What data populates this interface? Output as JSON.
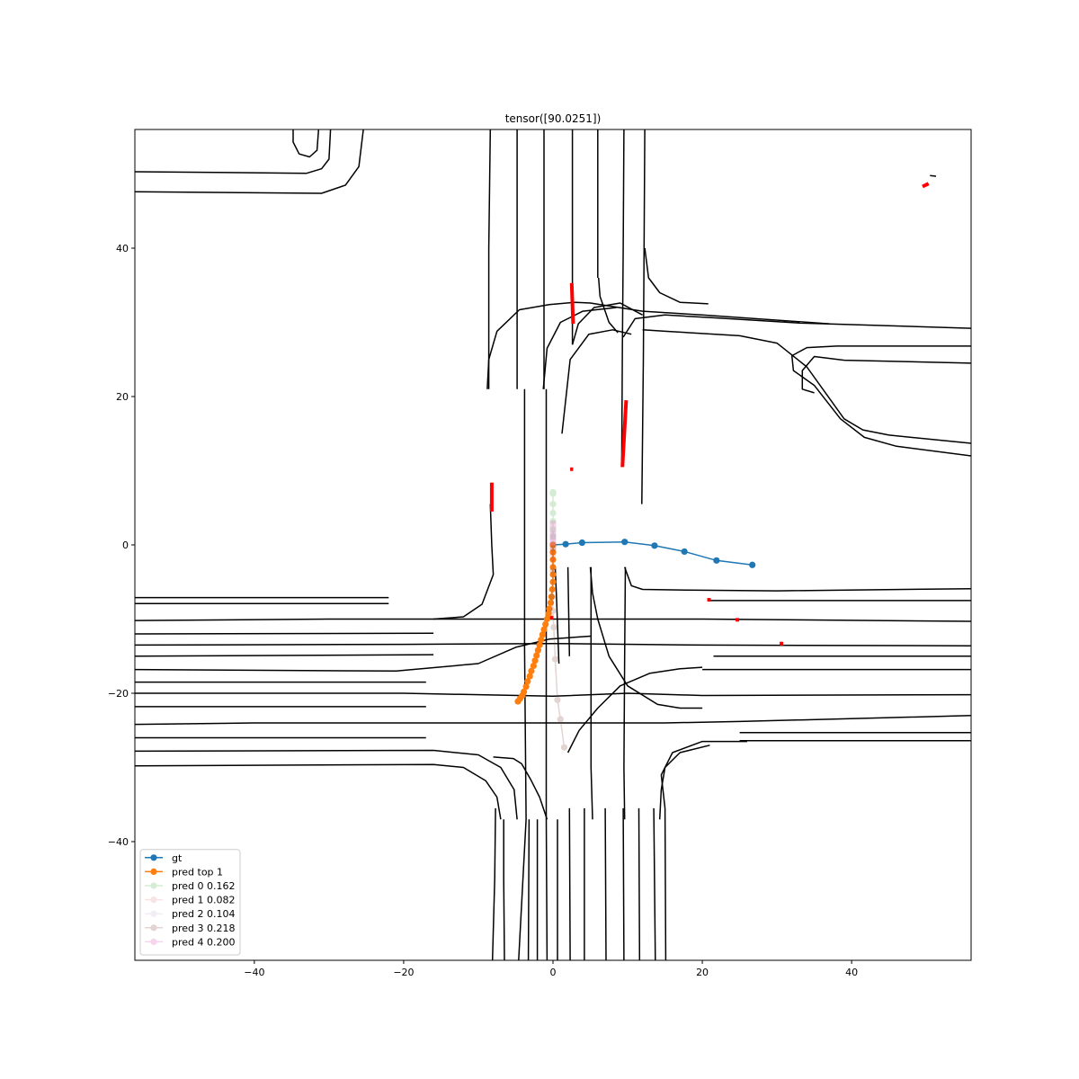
{
  "chart_data": {
    "type": "line",
    "title": "tensor([90.0251])",
    "xlabel": "",
    "ylabel": "",
    "xlim": [
      -56,
      56
    ],
    "ylim": [
      -56,
      56
    ],
    "xticks": [
      -40,
      -20,
      0,
      20,
      40
    ],
    "yticks": [
      -40,
      -20,
      0,
      20,
      40
    ],
    "xtick_labels": [
      "−40",
      "−20",
      "0",
      "20",
      "40"
    ],
    "ytick_labels": [
      "−40",
      "−20",
      "0",
      "20",
      "40"
    ],
    "grid": false,
    "legend_position": "lower-left",
    "lane_color": "#000000",
    "lanes": [
      [
        [
          -56,
          50.3
        ],
        [
          -33,
          50.1
        ],
        [
          -31,
          50.7
        ],
        [
          -30,
          52
        ],
        [
          -29.8,
          56
        ]
      ],
      [
        [
          -56,
          47.6
        ],
        [
          -31,
          47.4
        ],
        [
          -27.8,
          48.5
        ],
        [
          -26,
          51
        ],
        [
          -25.4,
          56
        ]
      ],
      [
        [
          -34.8,
          56
        ],
        [
          -34.8,
          54.3
        ],
        [
          -34,
          52.7
        ],
        [
          -32.6,
          52.3
        ],
        [
          -31.6,
          53.2
        ],
        [
          -31.4,
          56
        ]
      ],
      [
        [
          -8.4,
          56
        ],
        [
          -8.6,
          40
        ],
        [
          -8.6,
          21
        ]
      ],
      [
        [
          -4.8,
          56
        ],
        [
          -4.8,
          40
        ],
        [
          -4.8,
          21
        ]
      ],
      [
        [
          -8.4,
          5.5
        ],
        [
          -8.2,
          0
        ],
        [
          -8,
          -4
        ],
        [
          -9.5,
          -8
        ],
        [
          -12,
          -9.7
        ],
        [
          -16,
          -10
        ]
      ],
      [
        [
          -8.8,
          21
        ],
        [
          -8.6,
          25
        ],
        [
          -7.5,
          28.8
        ],
        [
          -4.5,
          31.7
        ],
        [
          -0.5,
          32.4
        ],
        [
          3,
          32.7
        ],
        [
          5,
          32.6
        ],
        [
          12,
          31.5
        ],
        [
          20,
          31
        ],
        [
          37,
          29.8
        ]
      ],
      [
        [
          -1.2,
          56
        ],
        [
          -1.2,
          40
        ],
        [
          -1.2,
          21
        ]
      ],
      [
        [
          -1.3,
          21
        ],
        [
          -0.8,
          26.5
        ],
        [
          1,
          30
        ],
        [
          4,
          31.5
        ],
        [
          8.5,
          32
        ]
      ],
      [
        [
          2.6,
          56
        ],
        [
          2.6,
          40
        ],
        [
          2.6,
          27
        ]
      ],
      [
        [
          2.6,
          27
        ],
        [
          3.4,
          29.8
        ],
        [
          5.5,
          32
        ],
        [
          9,
          32.6
        ],
        [
          12,
          31
        ]
      ],
      [
        [
          9.5,
          56
        ],
        [
          9.4,
          40
        ],
        [
          9.3,
          27
        ],
        [
          9.2,
          10.5
        ]
      ],
      [
        [
          9.4,
          28
        ],
        [
          11,
          30.5
        ],
        [
          15,
          31
        ],
        [
          22,
          30.6
        ],
        [
          33,
          29.9
        ],
        [
          56,
          29.2
        ]
      ],
      [
        [
          6,
          56
        ],
        [
          6,
          42
        ],
        [
          6,
          36
        ]
      ],
      [
        [
          6.1,
          36
        ],
        [
          6.3,
          33.5
        ],
        [
          7.5,
          30
        ],
        [
          8.7,
          28.6
        ]
      ],
      [
        [
          12.3,
          56
        ],
        [
          12.2,
          40
        ],
        [
          12.1,
          25
        ],
        [
          11.9,
          5.5
        ]
      ],
      [
        [
          12.3,
          40
        ],
        [
          12.8,
          36
        ],
        [
          14.3,
          34
        ],
        [
          17,
          32.7
        ],
        [
          20.8,
          32.5
        ]
      ],
      [
        [
          1.2,
          15
        ],
        [
          2.3,
          25
        ],
        [
          4.8,
          28.4
        ],
        [
          8,
          29
        ],
        [
          10.5,
          28.4
        ]
      ],
      [
        [
          12,
          29
        ],
        [
          15,
          28.8
        ],
        [
          25,
          28.2
        ],
        [
          30,
          27.2
        ],
        [
          34,
          24
        ],
        [
          39,
          17
        ],
        [
          41.5,
          15.5
        ],
        [
          45,
          14.8
        ],
        [
          56,
          13.7
        ]
      ],
      [
        [
          -3.8,
          21
        ],
        [
          -3.8,
          5
        ],
        [
          -3.8,
          -14
        ],
        [
          -3.6,
          -37
        ],
        [
          -4.6,
          -56
        ]
      ],
      [
        [
          -0.9,
          21
        ],
        [
          -0.9,
          5
        ],
        [
          -0.9,
          -14
        ],
        [
          -0.9,
          -37
        ],
        [
          -0.8,
          -56
        ]
      ],
      [
        [
          -0.8,
          -37
        ],
        [
          -1.8,
          -34
        ],
        [
          -3,
          -31.6
        ],
        [
          -4.2,
          -29.5
        ],
        [
          -5.3,
          -28.8
        ],
        [
          -8,
          -28.6
        ]
      ],
      [
        [
          0.3,
          -3
        ],
        [
          0.5,
          -8
        ],
        [
          0.8,
          -16
        ]
      ],
      [
        [
          2,
          -3
        ],
        [
          2.2,
          -15
        ]
      ],
      [
        [
          5.1,
          -3
        ],
        [
          5.1,
          -15
        ],
        [
          5.1,
          -30
        ],
        [
          5.3,
          -37
        ]
      ],
      [
        [
          5,
          -3
        ],
        [
          5.3,
          -6.5
        ],
        [
          6,
          -10
        ],
        [
          7.5,
          -15
        ],
        [
          10,
          -19
        ],
        [
          14,
          -21.5
        ],
        [
          17,
          -22
        ],
        [
          20,
          -22
        ]
      ],
      [
        [
          9.7,
          -3
        ],
        [
          9.6,
          -15
        ],
        [
          9.5,
          -30
        ],
        [
          9.6,
          -37
        ]
      ],
      [
        [
          9.6,
          -3
        ],
        [
          10.5,
          -5.5
        ],
        [
          12,
          -6
        ],
        [
          18,
          -6.1
        ],
        [
          30,
          -6.2
        ],
        [
          56,
          -5.9
        ]
      ],
      [
        [
          20.8,
          -7.5
        ],
        [
          56,
          -7.5
        ]
      ],
      [
        [
          -56,
          -10.2
        ],
        [
          -30,
          -10
        ],
        [
          0,
          -10
        ],
        [
          20,
          -10
        ],
        [
          56,
          -10.3
        ]
      ],
      [
        [
          -56,
          -12
        ],
        [
          -16,
          -11.9
        ]
      ],
      [
        [
          -56,
          -13.5
        ],
        [
          -20,
          -13.4
        ],
        [
          0,
          -13.3
        ],
        [
          20,
          -13.5
        ],
        [
          56,
          -13.6
        ]
      ],
      [
        [
          -56,
          -15
        ],
        [
          -16,
          -14.8
        ]
      ],
      [
        [
          -56,
          -16.8
        ],
        [
          -21,
          -17
        ],
        [
          -10,
          -16
        ],
        [
          -5,
          -13.8
        ],
        [
          -0.5,
          -12.7
        ],
        [
          5,
          -12.3
        ]
      ],
      [
        [
          21.5,
          -15
        ],
        [
          56,
          -15
        ]
      ],
      [
        [
          -56,
          -18.5
        ],
        [
          -17,
          -18.5
        ]
      ],
      [
        [
          -56,
          -20
        ],
        [
          -20,
          -20
        ],
        [
          0,
          -20.4
        ],
        [
          10,
          -20
        ],
        [
          20,
          -20.3
        ],
        [
          56,
          -20.2
        ]
      ],
      [
        [
          -56,
          -21.8
        ],
        [
          -17,
          -21.8
        ]
      ],
      [
        [
          -56,
          -24.2
        ],
        [
          -40,
          -24
        ],
        [
          -15,
          -24
        ],
        [
          0,
          -24
        ],
        [
          15,
          -24
        ],
        [
          25,
          -23.8
        ],
        [
          56,
          -23
        ]
      ],
      [
        [
          -56,
          -26
        ],
        [
          -17,
          -26
        ]
      ],
      [
        [
          -56,
          -27.8
        ],
        [
          -16,
          -27.7
        ],
        [
          -10,
          -28.3
        ],
        [
          -7,
          -30
        ],
        [
          -5.2,
          -33
        ],
        [
          -4.8,
          -37
        ]
      ],
      [
        [
          -56,
          -29.8
        ],
        [
          -16,
          -29.6
        ],
        [
          -12,
          -30
        ],
        [
          -9,
          -31.8
        ],
        [
          -7.5,
          -34
        ],
        [
          -7,
          -37
        ]
      ],
      [
        [
          20,
          -16.8
        ],
        [
          56,
          -16.8
        ]
      ],
      [
        [
          2,
          -28
        ],
        [
          3.5,
          -25
        ],
        [
          6,
          -22
        ],
        [
          9,
          -19
        ],
        [
          13,
          -17.3
        ],
        [
          17,
          -16.7
        ],
        [
          20,
          -16.5
        ]
      ],
      [
        [
          -56,
          -7.1
        ],
        [
          -22,
          -7.1
        ]
      ],
      [
        [
          -56,
          -7.9
        ],
        [
          -22,
          -7.9
        ]
      ],
      [
        [
          25,
          -25.3
        ],
        [
          56,
          -25.3
        ]
      ],
      [
        [
          25,
          -26.4
        ],
        [
          56,
          -26.4
        ]
      ],
      [
        [
          21,
          -27
        ],
        [
          17,
          -28
        ],
        [
          15,
          -30
        ],
        [
          14.5,
          -33
        ],
        [
          14.3,
          -37
        ]
      ],
      [
        [
          -7.7,
          -35.5
        ],
        [
          -7.8,
          -45
        ],
        [
          -8.1,
          -56
        ]
      ],
      [
        [
          -6.6,
          -37
        ],
        [
          -6.6,
          -45
        ],
        [
          -6.5,
          -56
        ]
      ],
      [
        [
          -3.2,
          -37
        ],
        [
          -3.3,
          -56
        ]
      ],
      [
        [
          -2.1,
          -37
        ],
        [
          -2.1,
          -56
        ]
      ],
      [
        [
          0.6,
          -37
        ],
        [
          0.6,
          -56
        ]
      ],
      [
        [
          2.2,
          -35.5
        ],
        [
          2.3,
          -56
        ]
      ],
      [
        [
          4.2,
          -35.5
        ],
        [
          4.2,
          -56
        ]
      ],
      [
        [
          7,
          -35.5
        ],
        [
          7.1,
          -56
        ]
      ],
      [
        [
          9.4,
          -35.5
        ],
        [
          9.5,
          -56
        ]
      ],
      [
        [
          11.5,
          -35.5
        ],
        [
          11.6,
          -56
        ]
      ],
      [
        [
          13.5,
          -35.5
        ],
        [
          13.7,
          -56
        ]
      ],
      [
        [
          15,
          -35.5
        ],
        [
          15.1,
          -56
        ]
      ],
      [
        [
          15,
          -35.5
        ],
        [
          14.5,
          -31
        ],
        [
          16,
          -28
        ],
        [
          20,
          -26.5
        ],
        [
          26,
          -26.5
        ]
      ],
      [
        [
          56,
          26.8
        ],
        [
          38,
          26.8
        ],
        [
          34,
          26.6
        ],
        [
          32,
          25.5
        ],
        [
          32.2,
          23.5
        ],
        [
          35,
          21.5
        ],
        [
          38.5,
          17
        ],
        [
          41.7,
          14.5
        ],
        [
          46,
          13.3
        ],
        [
          56,
          12
        ]
      ],
      [
        [
          56,
          24.5
        ],
        [
          39,
          24.9
        ],
        [
          35,
          25.4
        ],
        [
          33.4,
          23.5
        ],
        [
          33.4,
          21
        ],
        [
          35,
          20.5
        ]
      ]
    ],
    "red_segments": [
      [
        [
          -8.2,
          8.4
        ],
        [
          -8.2,
          4.5
        ]
      ],
      [
        [
          2.5,
          35.3
        ],
        [
          2.7,
          29.8
        ]
      ],
      [
        [
          9.8,
          19.5
        ],
        [
          9.3,
          10.5
        ]
      ],
      [
        [
          2.3,
          10.2
        ],
        [
          2.7,
          10.2
        ]
      ],
      [
        [
          49.5,
          48.3
        ],
        [
          50.3,
          48.7
        ]
      ]
    ],
    "black_small_segments": [
      [
        [
          50.5,
          49.8
        ],
        [
          51.3,
          49.7
        ]
      ]
    ],
    "red_dots": [
      [
        20.9,
        -7.4
      ],
      [
        24.7,
        -10.1
      ],
      [
        30.6,
        -13.3
      ],
      [
        -0.2,
        -9.8
      ]
    ],
    "red_color": "#ff0000",
    "series": [
      {
        "name": "gt",
        "color": "#1f77b4",
        "alpha": 1.0,
        "x": [
          0,
          1.7,
          3.9,
          9.6,
          13.6,
          17.6,
          21.9,
          26.7
        ],
        "y": [
          0,
          0.1,
          0.3,
          0.4,
          -0.1,
          -0.9,
          -2.1,
          -2.7
        ]
      },
      {
        "name": "pred top 1",
        "color": "#ff7f0e",
        "alpha": 1.0,
        "x": [
          0,
          0,
          0,
          0,
          0,
          0,
          -0.1,
          -0.2,
          -0.3,
          -0.5,
          -0.6,
          -0.8,
          -1,
          -1.2,
          -1.4,
          -1.6,
          -1.8,
          -2,
          -2.2,
          -2.4,
          -2.6,
          -2.9,
          -3.1,
          -3.4,
          -3.6,
          -3.9,
          -4.1,
          -4.4,
          -4.7
        ],
        "y": [
          0,
          -1,
          -2,
          -3,
          -4,
          -5,
          -6,
          -7,
          -7.8,
          -8.6,
          -9.3,
          -10,
          -10.7,
          -11.4,
          -12.1,
          -12.8,
          -13.5,
          -14.2,
          -14.9,
          -15.6,
          -16.3,
          -17,
          -17.7,
          -18.4,
          -19.1,
          -19.8,
          -20.3,
          -20.7,
          -21.1
        ]
      },
      {
        "name": "pred 0 0.162",
        "color": "#2ca02c",
        "alpha": 0.2,
        "x": [
          0,
          0,
          0,
          0,
          0,
          0,
          0
        ],
        "y": [
          1.1,
          2.1,
          3.2,
          4.3,
          5.5,
          6.9,
          7.1
        ]
      },
      {
        "name": "pred 1 0.082",
        "color": "#d62728",
        "alpha": 0.12,
        "x": [
          0,
          0,
          0,
          0,
          0,
          0
        ],
        "y": [
          -0.3,
          -0.6,
          -0.9,
          -1.2,
          -1.5,
          -1.8
        ]
      },
      {
        "name": "pred 2 0.104",
        "color": "#9467bd",
        "alpha": 0.12,
        "x": [
          0,
          0,
          0,
          0,
          0
        ],
        "y": [
          0.2,
          0.5,
          0.8,
          1.1,
          1.4
        ]
      },
      {
        "name": "pred 3 0.218",
        "color": "#8c564b",
        "alpha": 0.25,
        "x": [
          0,
          0,
          -0.1,
          0,
          0.1,
          0.3,
          0.6,
          1,
          1.5
        ],
        "y": [
          -0.5,
          -3.5,
          -7,
          -8.9,
          -11.1,
          -15.4,
          -20.9,
          -23.5,
          -27.3
        ]
      },
      {
        "name": "pred 4 0.200",
        "color": "#e377c2",
        "alpha": 0.3,
        "x": [
          0,
          0,
          0,
          0,
          0,
          0,
          0
        ],
        "y": [
          0.3,
          0.8,
          1.3,
          1.8,
          2.3,
          2.6,
          2.9
        ]
      }
    ]
  }
}
